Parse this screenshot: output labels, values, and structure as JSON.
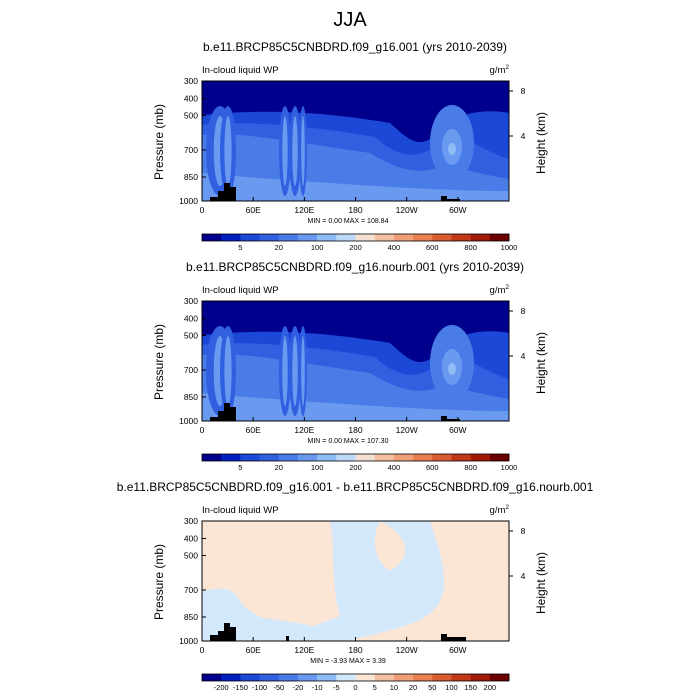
{
  "figure": {
    "title": "JJA"
  },
  "colors": {
    "black_terrain": "#000000",
    "frame": "#000000"
  },
  "chart_data": [
    {
      "type": "heatmap",
      "title": "b.e11.BRCP85C5CNBDRD.f09_g16.001 (yrs 2010-2039)",
      "left_label": "In-cloud liquid WP",
      "right_label": "g/m",
      "right_label_sup": "2",
      "ylabel": "Pressure (mb)",
      "ylabel_right": "Height (km)",
      "xticks": [
        "0",
        "60E",
        "120E",
        "180",
        "120W",
        "60W"
      ],
      "yticks": [
        "300",
        "400",
        "500",
        "700",
        "850",
        "1000"
      ],
      "yticks_right": [
        "8",
        "4"
      ],
      "min_max_text": "MIN =   0.00  MAX = 108.84",
      "min": 0.0,
      "max": 108.84,
      "colorbar_ticks": [
        "5",
        "20",
        "100",
        "200",
        "400",
        "600",
        "800",
        "1000"
      ],
      "colorbar_colors": [
        "#00008c",
        "#0020c0",
        "#1c48d8",
        "#3060e0",
        "#4a7ce8",
        "#6a9af0",
        "#90bcf5",
        "#bcdaf8",
        "#f4e0d2",
        "#f4c0a2",
        "#f0a078",
        "#e88050",
        "#d85c30",
        "#c03818",
        "#a01a08",
        "#6a0000"
      ],
      "field_colors": {
        "top": "#00008c",
        "mid": "#0e2ed0",
        "band1": "#1c48d8",
        "band2": "#3060e0",
        "band3": "#4a7ce8",
        "band4": "#6a9af0",
        "peak": "#90bcf5"
      }
    },
    {
      "type": "heatmap",
      "title": "b.e11.BRCP85C5CNBDRD.f09_g16.nourb.001 (yrs 2010-2039)",
      "left_label": "In-cloud liquid WP",
      "right_label": "g/m",
      "right_label_sup": "2",
      "ylabel": "Pressure (mb)",
      "ylabel_right": "Height (km)",
      "xticks": [
        "0",
        "60E",
        "120E",
        "180",
        "120W",
        "60W"
      ],
      "yticks": [
        "300",
        "400",
        "500",
        "700",
        "850",
        "1000"
      ],
      "yticks_right": [
        "8",
        "4"
      ],
      "min_max_text": "MIN =   0.00  MAX = 107.30",
      "min": 0.0,
      "max": 107.3,
      "colorbar_ticks": [
        "5",
        "20",
        "100",
        "200",
        "400",
        "600",
        "800",
        "1000"
      ],
      "colorbar_colors": [
        "#00008c",
        "#0020c0",
        "#1c48d8",
        "#3060e0",
        "#4a7ce8",
        "#6a9af0",
        "#90bcf5",
        "#bcdaf8",
        "#f4e0d2",
        "#f4c0a2",
        "#f0a078",
        "#e88050",
        "#d85c30",
        "#c03818",
        "#a01a08",
        "#6a0000"
      ],
      "field_colors": {
        "top": "#00008c",
        "mid": "#0e2ed0",
        "band1": "#1c48d8",
        "band2": "#3060e0",
        "band3": "#4a7ce8",
        "band4": "#6a9af0",
        "peak": "#90bcf5"
      }
    },
    {
      "type": "heatmap",
      "title": "b.e11.BRCP85C5CNBDRD.f09_g16.001 - b.e11.BRCP85C5CNBDRD.f09_g16.nourb.001",
      "left_label": "In-cloud liquid WP",
      "right_label": "g/m",
      "right_label_sup": "2",
      "ylabel": "Pressure (mb)",
      "ylabel_right": "Height (km)",
      "xticks": [
        "0",
        "60E",
        "120E",
        "180",
        "120W",
        "60W"
      ],
      "yticks": [
        "300",
        "400",
        "500",
        "700",
        "850",
        "1000"
      ],
      "yticks_right": [
        "8",
        "4"
      ],
      "min_max_text": "MIN =  -3.93  MAX =   3.39",
      "min": -3.93,
      "max": 3.39,
      "colorbar_ticks": [
        "-200",
        "-150",
        "-100",
        "-50",
        "-20",
        "-10",
        "-5",
        "0",
        "5",
        "10",
        "20",
        "50",
        "100",
        "150",
        "200"
      ],
      "colorbar_colors": [
        "#00008c",
        "#0020c0",
        "#1c48d8",
        "#3060e0",
        "#4a7ce8",
        "#6a9af0",
        "#90bcf5",
        "#d4e8fb",
        "#fbe6d6",
        "#f4c0a2",
        "#f0a078",
        "#e88050",
        "#d85c30",
        "#c03818",
        "#a01a08",
        "#6a0000"
      ],
      "field_colors": {
        "base": "#d4e8fb",
        "pos": "#fbe6d6"
      }
    }
  ]
}
